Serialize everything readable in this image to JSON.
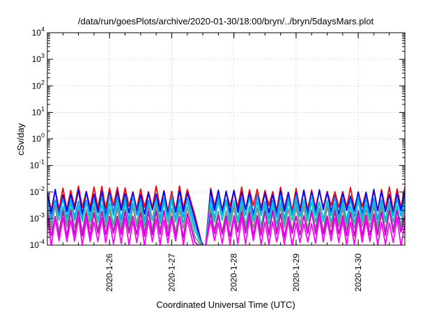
{
  "chart_data": {
    "type": "line",
    "title": "/data/run/goesPlots/archive/2020-01-30/18:00/bryn/../bryn/5daysMars.plot",
    "xlabel": "Coordinated Universal Time (UTC)",
    "ylabel": "cSv/day",
    "yscale": "log",
    "ylim": [
      0.0001,
      10000
    ],
    "y_ticks": [
      {
        "base": "10",
        "exp": "-4"
      },
      {
        "base": "10",
        "exp": "-3"
      },
      {
        "base": "10",
        "exp": "-2"
      },
      {
        "base": "10",
        "exp": "-1"
      },
      {
        "base": "10",
        "exp": "0"
      },
      {
        "base": "10",
        "exp": "1"
      },
      {
        "base": "10",
        "exp": "2"
      },
      {
        "base": "10",
        "exp": "3"
      },
      {
        "base": "10",
        "exp": "4"
      }
    ],
    "xlim": [
      "2020-01-25 00:00",
      "2020-01-30 18:00"
    ],
    "x_tick_labels": [
      "2020-1-26",
      "2020-1-27",
      "2020-1-28",
      "2020-1-29",
      "2020-1-30"
    ],
    "grid": true,
    "gap": [
      "2020-01-27 06:00",
      "2020-01-27 15:00"
    ],
    "series": [
      {
        "color": "#ff0000",
        "peak": 0.013,
        "trough": 0.0025
      },
      {
        "color": "#0000ff",
        "peak": 0.01,
        "trough": 0.0018
      },
      {
        "color": "#00a0ff",
        "peak": 0.006,
        "trough": 0.0011
      },
      {
        "color": "#00c8c8",
        "peak": 0.004,
        "trough": 0.0007
      },
      {
        "color": "#888888",
        "peak": 0.0025,
        "trough": 0.0004
      },
      {
        "color": "#cc00cc",
        "peak": 0.0016,
        "trough": 0.00025
      },
      {
        "color": "#ff00ff",
        "peak": 0.0009,
        "trough": 0.00012
      }
    ]
  }
}
